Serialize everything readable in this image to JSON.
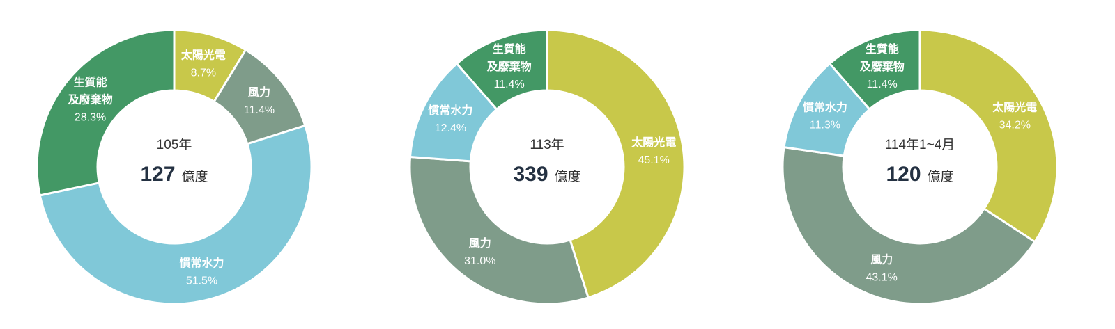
{
  "colors": {
    "太陽光電": "#c8c84a",
    "風力": "#7f9c8a",
    "慣常水力": "#80c8d8",
    "生質能及廢棄物": "#439865"
  },
  "chart_data": [
    {
      "type": "pie",
      "center_label": "105年",
      "total": "127",
      "unit": "億度",
      "slices": [
        {
          "name": "太陽光電",
          "lines": [
            "太陽光電"
          ],
          "value": 8.7,
          "label": "8.7%"
        },
        {
          "name": "風力",
          "lines": [
            "風力"
          ],
          "value": 11.4,
          "label": "11.4%"
        },
        {
          "name": "慣常水力",
          "lines": [
            "慣常水力"
          ],
          "value": 51.5,
          "label": "51.5%"
        },
        {
          "name": "生質能及廢棄物",
          "lines": [
            "生質能",
            "及廢棄物"
          ],
          "value": 28.3,
          "label": "28.3%"
        }
      ]
    },
    {
      "type": "pie",
      "center_label": "113年",
      "total": "339",
      "unit": "億度",
      "slices": [
        {
          "name": "太陽光電",
          "lines": [
            "太陽光電"
          ],
          "value": 45.1,
          "label": "45.1%"
        },
        {
          "name": "風力",
          "lines": [
            "風力"
          ],
          "value": 31.0,
          "label": "31.0%"
        },
        {
          "name": "慣常水力",
          "lines": [
            "慣常水力"
          ],
          "value": 12.4,
          "label": "12.4%"
        },
        {
          "name": "生質能及廢棄物",
          "lines": [
            "生質能",
            "及廢棄物"
          ],
          "value": 11.4,
          "label": "11.4%"
        }
      ]
    },
    {
      "type": "pie",
      "center_label": "114年1~4月",
      "total": "120",
      "unit": "億度",
      "slices": [
        {
          "name": "太陽光電",
          "lines": [
            "太陽光電"
          ],
          "value": 34.2,
          "label": "34.2%"
        },
        {
          "name": "風力",
          "lines": [
            "風力"
          ],
          "value": 43.1,
          "label": "43.1%"
        },
        {
          "name": "慣常水力",
          "lines": [
            "慣常水力"
          ],
          "value": 11.3,
          "label": "11.3%"
        },
        {
          "name": "生質能及廢棄物",
          "lines": [
            "生質能",
            "及廢棄物"
          ],
          "value": 11.4,
          "label": "11.4%"
        }
      ]
    }
  ]
}
